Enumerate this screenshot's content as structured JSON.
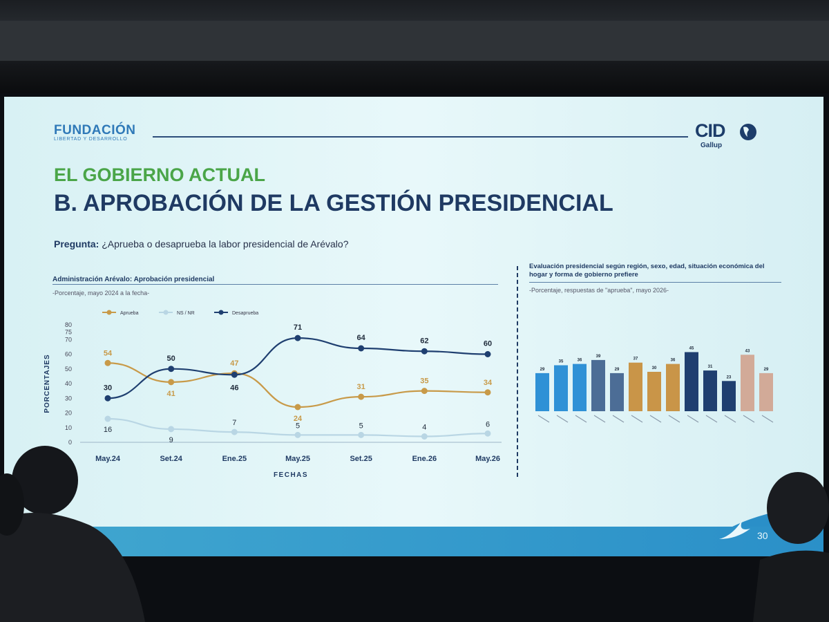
{
  "slide": {
    "foundation_logo": {
      "name": "FUNDACIÓN",
      "tagline": "LIBERTAD Y DESARROLLO"
    },
    "cid_logo": {
      "name": "CID",
      "sub": "Gallup"
    },
    "title_line1": "EL GOBIERNO ACTUAL",
    "title_line2": "B. APROBACIÓN DE LA GESTIÓN PRESIDENCIAL",
    "question_label": "Pregunta:",
    "question_text": "¿Aprueba o desaprueba la labor presidencial de Arévalo?",
    "page_number": "30"
  },
  "colors": {
    "aprueba": "#c89a49",
    "nsnr": "#b9d6e4",
    "desaprueba": "#1f3f70",
    "bar_blue": "#2f91d6",
    "bar_slate": "#4c6d96",
    "bar_gold": "#c99548",
    "bar_navy": "#1f3f70",
    "bar_rose": "#d2aa98"
  },
  "chart_data": [
    {
      "type": "line",
      "title": "Administración Arévalo: Aprobación presidencial",
      "subtitle": "-Porcentaje, mayo 2024 a la fecha-",
      "xlabel": "FECHAS",
      "ylabel": "PORCENTAJES",
      "ylim": [
        0,
        80
      ],
      "yticks": [
        0,
        10,
        20,
        30,
        40,
        50,
        60,
        70,
        75,
        80
      ],
      "grid": false,
      "legend_placement": "top-left",
      "categories": [
        "May.24",
        "Set.24",
        "Ene.25",
        "May.25",
        "Set.25",
        "Ene.26",
        "May.26"
      ],
      "series": [
        {
          "name": "Aprueba",
          "values": [
            54,
            41,
            47,
            24,
            31,
            35,
            34
          ]
        },
        {
          "name": "NS / NR",
          "values": [
            16,
            9,
            7,
            5,
            5,
            4,
            6
          ]
        },
        {
          "name": "Desaprueba",
          "values": [
            30,
            50,
            46,
            71,
            64,
            62,
            60
          ]
        }
      ]
    },
    {
      "type": "bar",
      "title": "Evaluación presidencial según región, sexo, edad, situación económica del hogar y forma de gobierno prefiere",
      "subtitle": "-Porcentaje, respuestas de \"aprueba\", mayo 2026-",
      "grid": false,
      "values": [
        29,
        35,
        36,
        39,
        29,
        37,
        30,
        36,
        45,
        31,
        23,
        43,
        29
      ],
      "color_groups": [
        "blue",
        "blue",
        "blue",
        "slate",
        "slate",
        "gold",
        "gold",
        "gold",
        "navy",
        "navy",
        "navy",
        "rose",
        "rose"
      ]
    }
  ]
}
